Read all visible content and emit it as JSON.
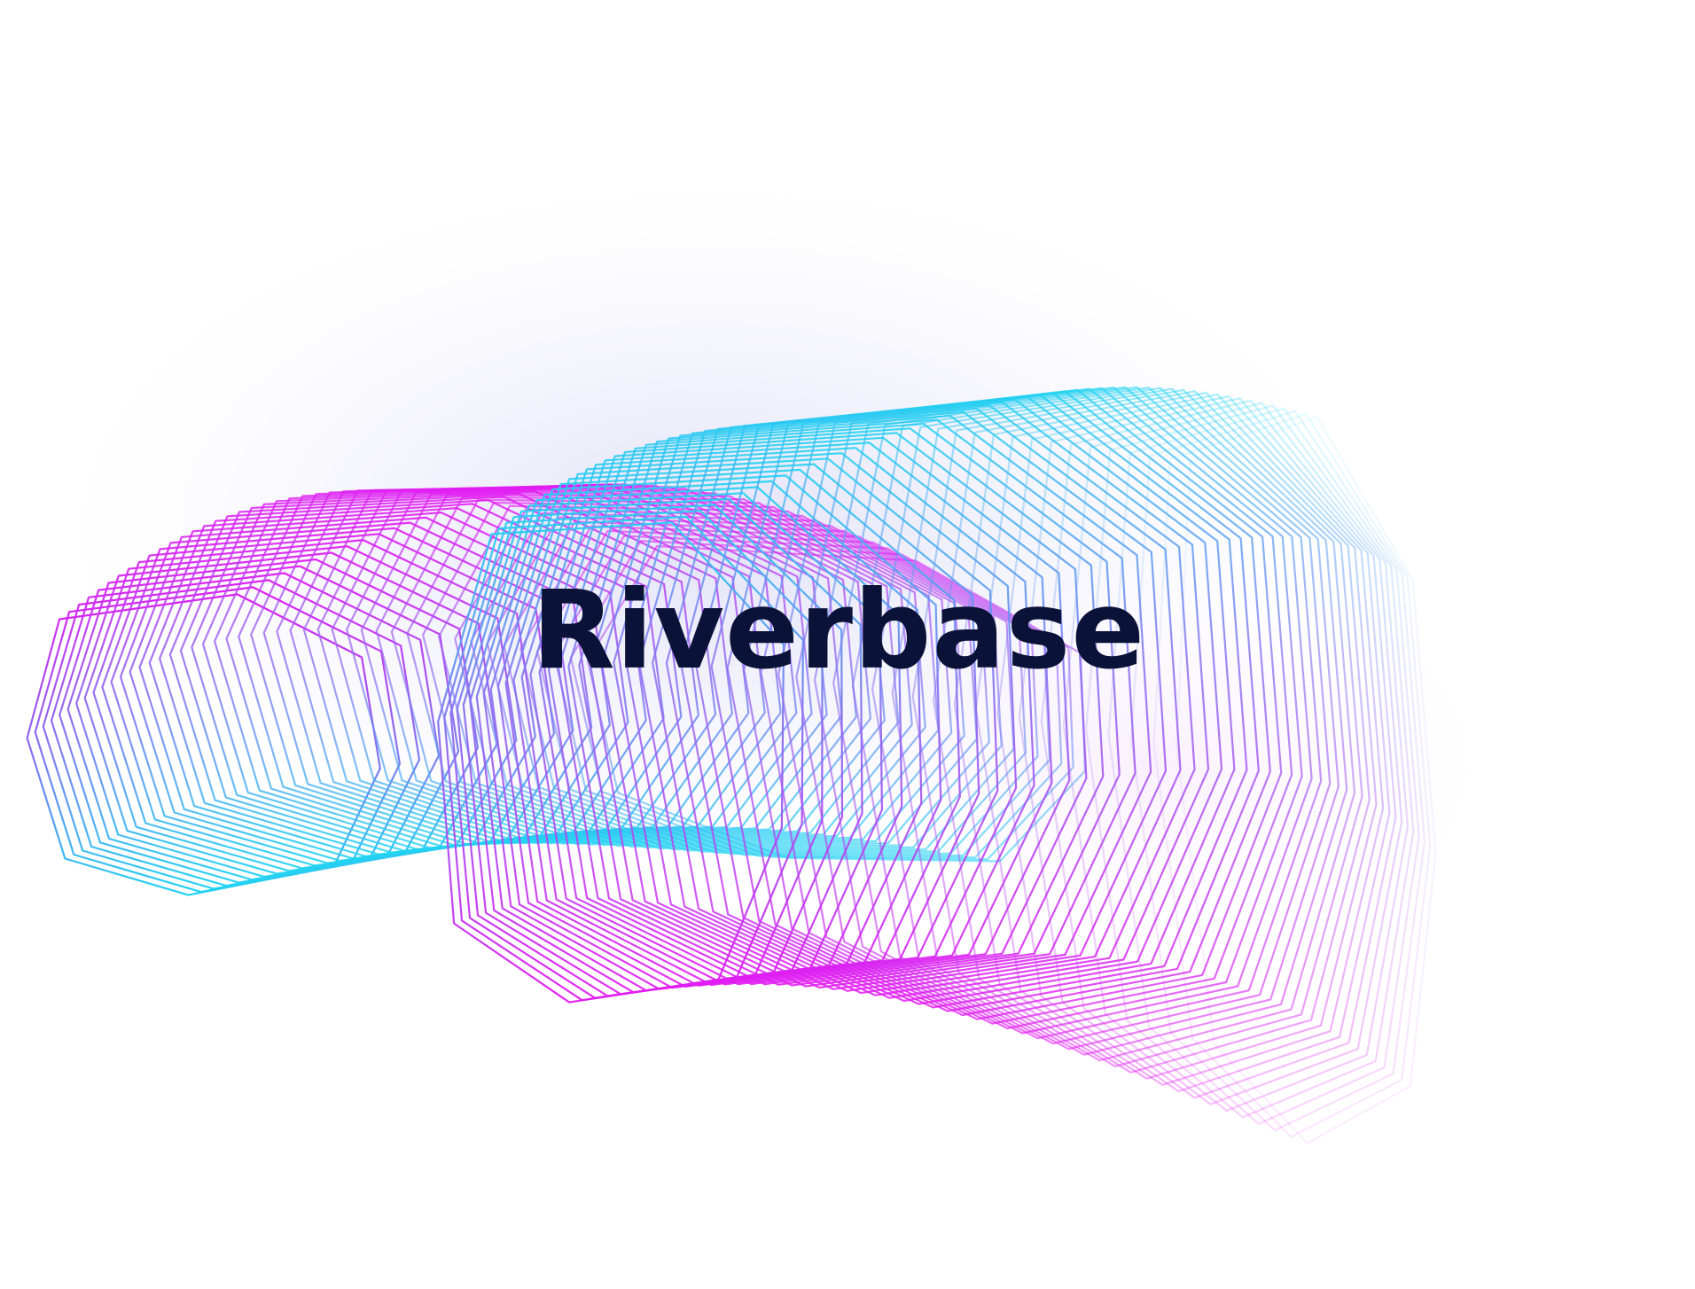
{
  "brand": {
    "name": "Riverbase",
    "text_color": "#0b1238"
  },
  "artwork": {
    "description_icon": "wave-mesh-artwork",
    "gradient": {
      "magenta": "#e21bf2",
      "violet": "#8a6cf0",
      "cyan": "#22d3f2"
    },
    "glow_color": "#dcdcf6",
    "background": "#ffffff"
  }
}
